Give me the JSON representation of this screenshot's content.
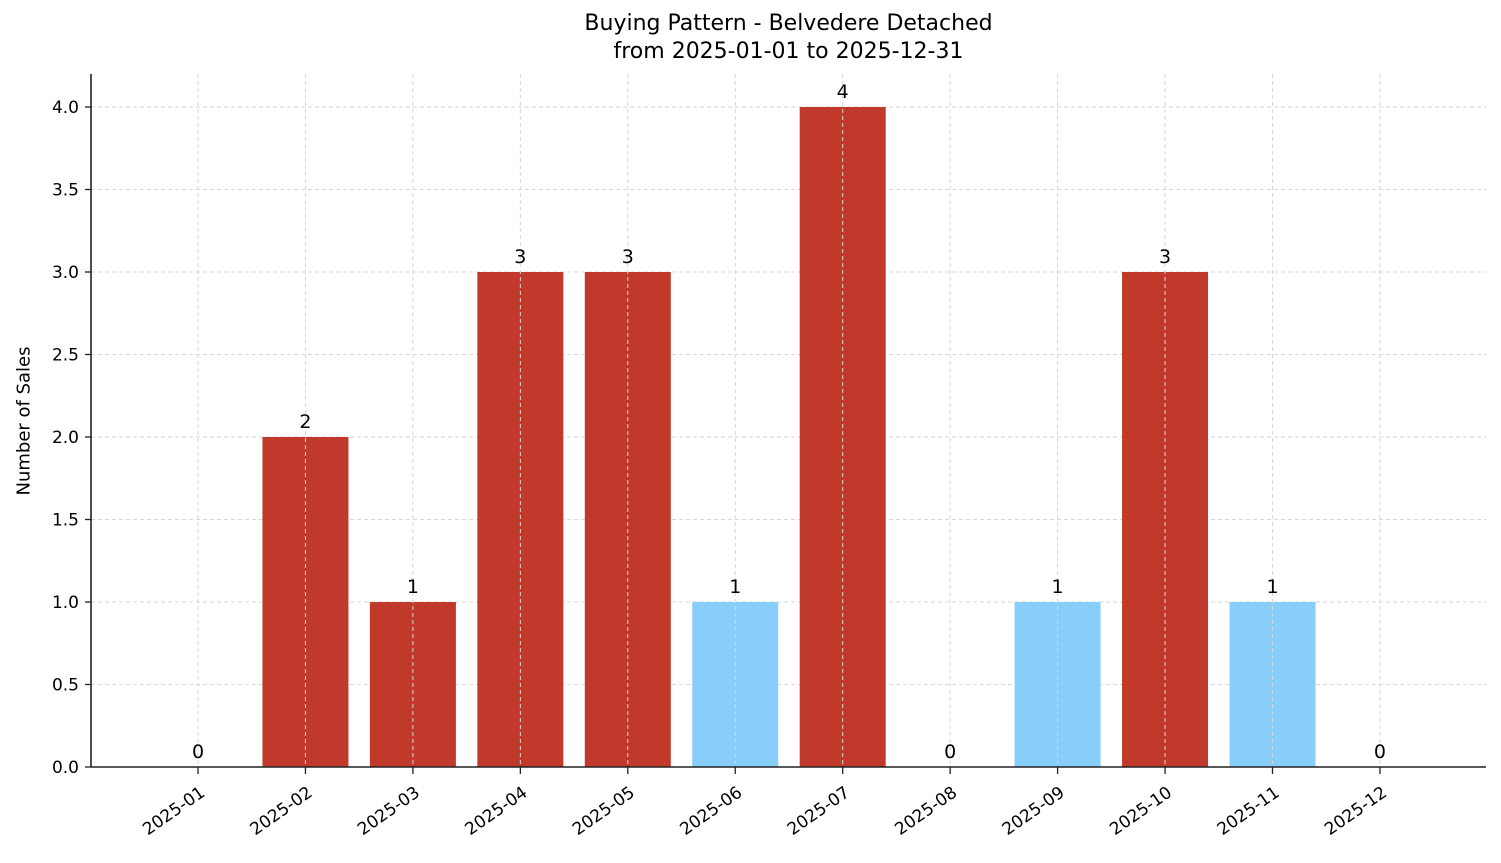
{
  "chart_data": {
    "type": "bar",
    "title": "Buying Pattern - Belvedere Detached",
    "subtitle": "from 2025-01-01 to 2025-12-31",
    "xlabel": "",
    "ylabel": "Number of Sales",
    "categories": [
      "2025-01",
      "2025-02",
      "2025-03",
      "2025-04",
      "2025-05",
      "2025-06",
      "2025-07",
      "2025-08",
      "2025-09",
      "2025-10",
      "2025-11",
      "2025-12"
    ],
    "values": [
      0,
      2,
      1,
      3,
      3,
      1,
      4,
      0,
      1,
      3,
      1,
      0
    ],
    "bar_colors": [
      "#C0392B",
      "#C0392B",
      "#C0392B",
      "#C0392B",
      "#C0392B",
      "#87CEFA",
      "#C0392B",
      "#C0392B",
      "#87CEFA",
      "#C0392B",
      "#87CEFA",
      "#C0392B"
    ],
    "data_labels": [
      "0",
      "2",
      "1",
      "3",
      "3",
      "1",
      "4",
      "0",
      "1",
      "3",
      "1",
      "0"
    ],
    "yticks": [
      "0.0",
      "0.5",
      "1.0",
      "1.5",
      "2.0",
      "2.5",
      "3.0",
      "3.5",
      "4.0"
    ],
    "ylim": [
      0,
      4.2
    ],
    "grid": true,
    "legend": null,
    "x_tick_rotation": 35
  }
}
